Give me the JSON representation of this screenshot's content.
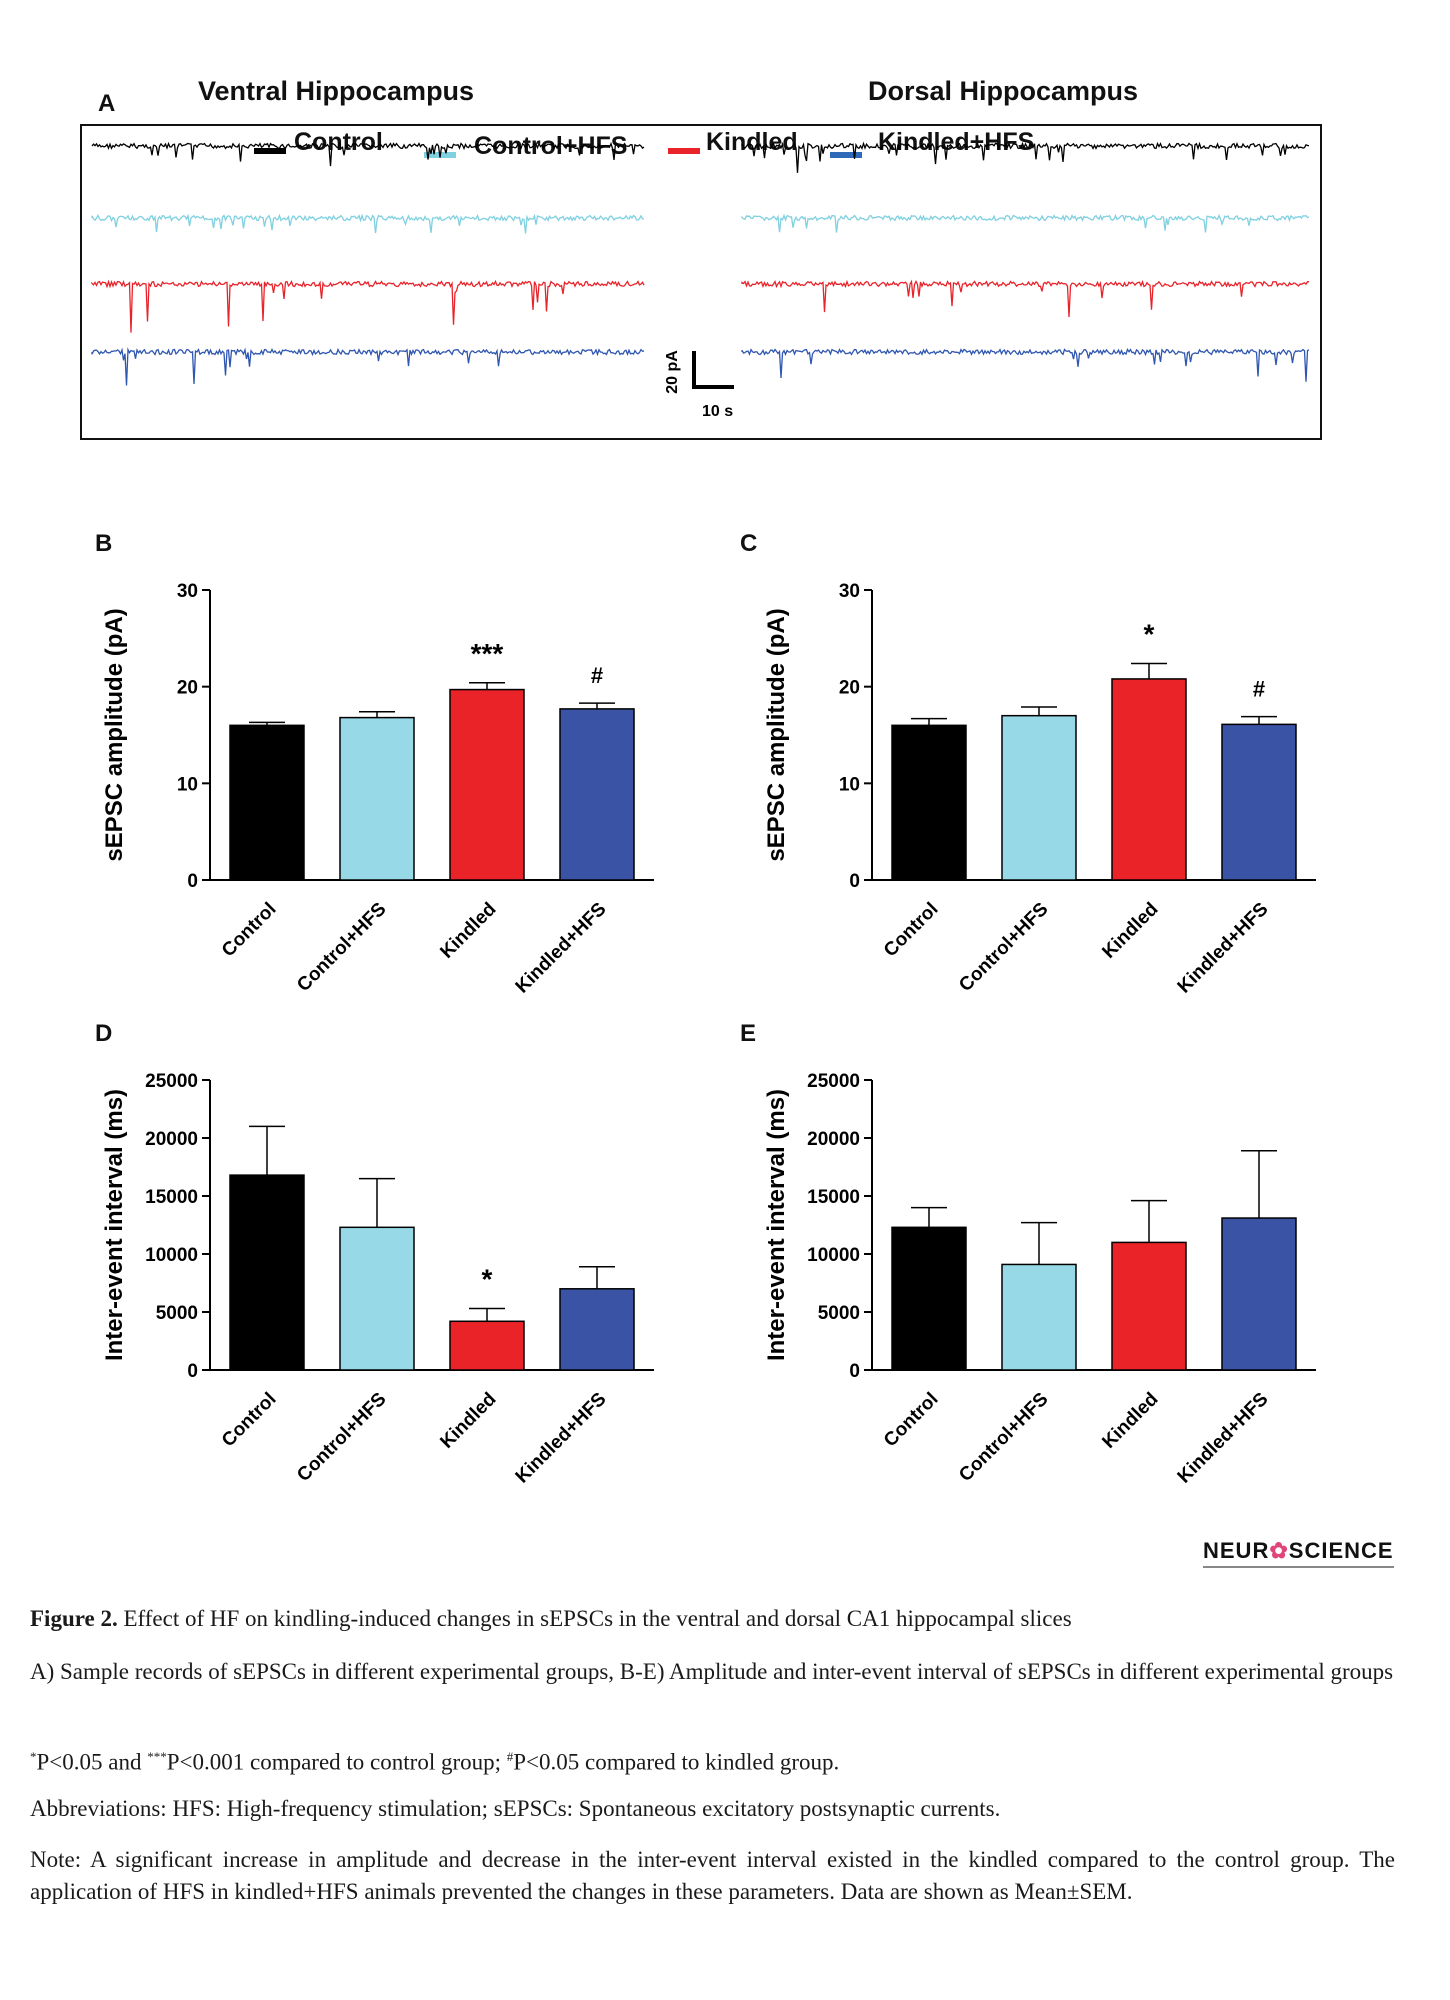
{
  "panelA": {
    "letter": "A",
    "ventral_title": "Ventral Hippocampus",
    "dorsal_title": "Dorsal Hippocampus",
    "legend": [
      {
        "label": "Control",
        "color": "#000000"
      },
      {
        "label": "Control+HFS",
        "color": "#7fd0e0"
      },
      {
        "label": "Kindled",
        "color": "#e8232a"
      },
      {
        "label": "Kindled+HFS",
        "color": "#2f56b0"
      }
    ],
    "scale_y": "20 pA",
    "scale_x": "10 s"
  },
  "chart_data": [
    {
      "panel": "B",
      "type": "bar",
      "categories": [
        "Control",
        "Control+HFS",
        "Kindled",
        "Kindled+HFS"
      ],
      "values": [
        16.0,
        16.8,
        19.7,
        17.7
      ],
      "errors": [
        0.3,
        0.6,
        0.7,
        0.6
      ],
      "annotations": [
        "",
        "",
        "***",
        "#"
      ],
      "colors": [
        "#000000",
        "#97d9e6",
        "#ea2328",
        "#3a53a4"
      ],
      "ylabel": "sEPSC amplitude (pA)",
      "ylim": [
        0,
        30
      ],
      "yticks": [
        "0",
        "10",
        "20",
        "30"
      ]
    },
    {
      "panel": "C",
      "type": "bar",
      "categories": [
        "Control",
        "Control+HFS",
        "Kindled",
        "Kindled+HFS"
      ],
      "values": [
        16.0,
        17.0,
        20.8,
        16.1
      ],
      "errors": [
        0.7,
        0.9,
        1.6,
        0.8
      ],
      "annotations": [
        "",
        "",
        "*",
        "#"
      ],
      "colors": [
        "#000000",
        "#97d9e6",
        "#ea2328",
        "#3a53a4"
      ],
      "ylabel": "sEPSC amplitude (pA)",
      "ylim": [
        0,
        30
      ],
      "yticks": [
        "0",
        "10",
        "20",
        "30"
      ]
    },
    {
      "panel": "D",
      "type": "bar",
      "categories": [
        "Control",
        "Control+HFS",
        "Kindled",
        "Kindled+HFS"
      ],
      "values": [
        16800,
        12300,
        4200,
        7000
      ],
      "errors": [
        4200,
        4200,
        1100,
        1900
      ],
      "annotations": [
        "",
        "",
        "*",
        ""
      ],
      "colors": [
        "#000000",
        "#97d9e6",
        "#ea2328",
        "#3a53a4"
      ],
      "ylabel": "Inter-event interval (ms)",
      "ylim": [
        0,
        25000
      ],
      "yticks": [
        "0",
        "5000",
        "10000",
        "15000",
        "20000",
        "25000"
      ]
    },
    {
      "panel": "E",
      "type": "bar",
      "categories": [
        "Control",
        "Control+HFS",
        "Kindled",
        "Kindled+HFS"
      ],
      "values": [
        12300,
        9100,
        11000,
        13100
      ],
      "errors": [
        1700,
        3600,
        3600,
        5800
      ],
      "annotations": [
        "",
        "",
        "",
        ""
      ],
      "colors": [
        "#000000",
        "#97d9e6",
        "#ea2328",
        "#3a53a4"
      ],
      "ylabel": "Inter-event interval (ms)",
      "ylim": [
        0,
        25000
      ],
      "yticks": [
        "0",
        "5000",
        "10000",
        "15000",
        "20000",
        "25000"
      ]
    }
  ],
  "brand": {
    "left": "NEUR",
    "mid": "✿",
    "right": "SCIENCE"
  },
  "caption": {
    "figure_label": "Figure 2.",
    "figure_title": "Effect of HF on kindling-induced changes in sEPSCs in the ventral and dorsal CA1 hippocampal slices",
    "line_a": "A) Sample records of sEPSCs in different experimental groups, B-E) Amplitude and inter-event interval of sEPSCs in different experimental groups",
    "sig_star1": "*",
    "sig_part1": "P<0.05 and ",
    "sig_star3": "***",
    "sig_part2": "P<0.001 compared to control group; ",
    "sig_hash": "#",
    "sig_part3": "P<0.05 compared to kindled group.",
    "abbreviations": "Abbreviations: HFS: High-frequency stimulation; sEPSCs: Spontaneous excitatory postsynaptic currents.",
    "note": "Note: A significant increase in amplitude and decrease in the inter-event interval existed in the kindled compared to the control group. The application of HFS in kindled+HFS animals prevented the changes in these parameters. Data are shown as Mean±SEM."
  }
}
